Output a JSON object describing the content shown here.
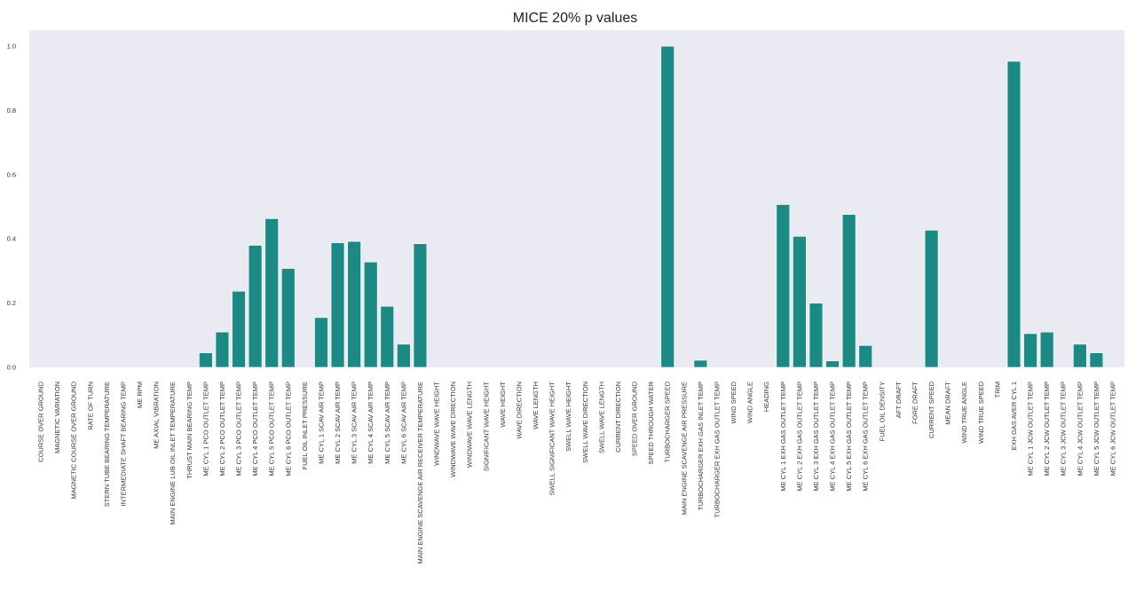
{
  "chart_data": {
    "type": "bar",
    "title": "MICE 20% p values",
    "xlabel": "",
    "ylabel": "",
    "ylim": [
      0,
      1.05
    ],
    "yticks": [
      "0.0",
      "0.2",
      "0.4",
      "0.6",
      "0.8",
      "1.0"
    ],
    "grid": false,
    "colors": {
      "bar": "#1b8a84",
      "plot_bg": "#eaeaf2",
      "bar_edge": "#ffffff"
    },
    "categories": [
      "COURSE OVER GROUND",
      "MAGNETIC VARIATION",
      "MAGNETIC COURSE OVER GROUND",
      "RATE OF TURN",
      "STERN TUBE BEARING TEMPERATURE",
      "INTERMEDIATE SHAFT BEARING TEMP",
      "ME RPM",
      "ME AXIAL VIBRATION",
      "MAIN ENGINE LUB OIL INLET TEMPERATURE",
      "THRUST MAIN BEARING TEMP",
      "ME CYL 1 PCO OUTLET TEMP",
      "ME CYL 2 PCO OUTLET TEMP",
      "ME CYL 3 PCO OUTLET TEMP",
      "ME CYL 4 PCO OUTLET TEMP",
      "ME CYL 5 PCO OUTLET TEMP",
      "ME CYL 6 PCO OUTLET TEMP",
      "FUEL OIL INLET PRESSURE",
      "ME CYL 1 SCAV AIR TEMP",
      "ME CYL 2 SCAV AIR TEMP",
      "ME CYL 3 SCAV AIR TEMP",
      "ME CYL 4 SCAV AIR TEMP",
      "ME CYL 5 SCAV AIR TEMP",
      "ME CYL 6 SCAV AIR TEMP",
      "MAIN ENGINE SCAVENGE AIR RECEIVER TEMPERATURE",
      "WINDWAVE WAVE HEIGHT",
      "WINDWAVE WAVE DIRECTION",
      "WINDWAVE WAVE LENGTH",
      "SIGNIFICANT WAVE HEIGHT",
      "WAVE HEIGHT",
      "WAVE DIRECTION",
      "WAVE LENGTH",
      "SWELL SIGNIFICANT WAVE HEIGHT",
      "SWELL WAVE HEIGHT",
      "SWELL WAVE DIRECTION",
      "SWELL WAVE LENGTH",
      "CURRENT DIRECTION",
      "SPEED OVER GROUND",
      "SPEED THROUGH WATER",
      "TURBOCHARGER SPEED",
      "MAIN ENGINE  SCAVENGE AIR PRESSURE",
      "TURBOCHARGER EXH GAS INLET TEMP",
      "TURBOCHARGER EXH GAS OUTLET TEMP",
      "WIND SPEED",
      "WIND ANGLE",
      "HEADING",
      "ME CYL 1 EXH GAS OUTLET TEMP",
      "ME CYL 2 EXH GAS OUTLET TEMP",
      "ME CYL 3 EXH GAS OUTLET TEMP",
      "ME CYL 4 EXH GAS OUTLET TEMP",
      "ME CYL 5 EXH GAS OUTLET TEMP",
      "ME CYL 6 EXH GAS OUTLET TEMP",
      "FUEL OIL DENSITY",
      "AFT DRAFT",
      "FORE DRAFT",
      "CURRENT SPEED",
      "MEAN DRAFT",
      "WIND TRUE ANGLE",
      "WIND TRUE SPEED",
      "TRIM",
      "EXH GAS AVER CYL 1",
      "ME CYL 1 JCW OUTLET TEMP",
      "ME CYL 2 JCW OUTLET TEMP",
      "ME CYL 3 JCW OUTLET TEMP",
      "ME CYL 4 JCW OUTLET TEMP",
      "ME CYL 5 JCW OUTLET TEMP",
      "ME CYL 6 JCW OUTLET TEMP"
    ],
    "values": [
      0,
      0,
      0,
      0,
      0,
      0,
      0,
      0,
      0,
      0,
      0.045,
      0.11,
      0.237,
      0.38,
      0.463,
      0.308,
      0,
      0.155,
      0.388,
      0.392,
      0.328,
      0.19,
      0.072,
      0.385,
      0,
      0,
      0,
      0,
      0,
      0,
      0,
      0,
      0,
      0,
      0,
      0,
      0,
      0,
      1.0,
      0,
      0.022,
      0,
      0,
      0,
      0,
      0.507,
      0.408,
      0.2,
      0.02,
      0.476,
      0.068,
      0,
      0,
      0,
      0.427,
      0,
      0,
      0,
      0,
      0.953,
      0.105,
      0.11,
      0,
      0.072,
      0.045,
      0
    ]
  }
}
